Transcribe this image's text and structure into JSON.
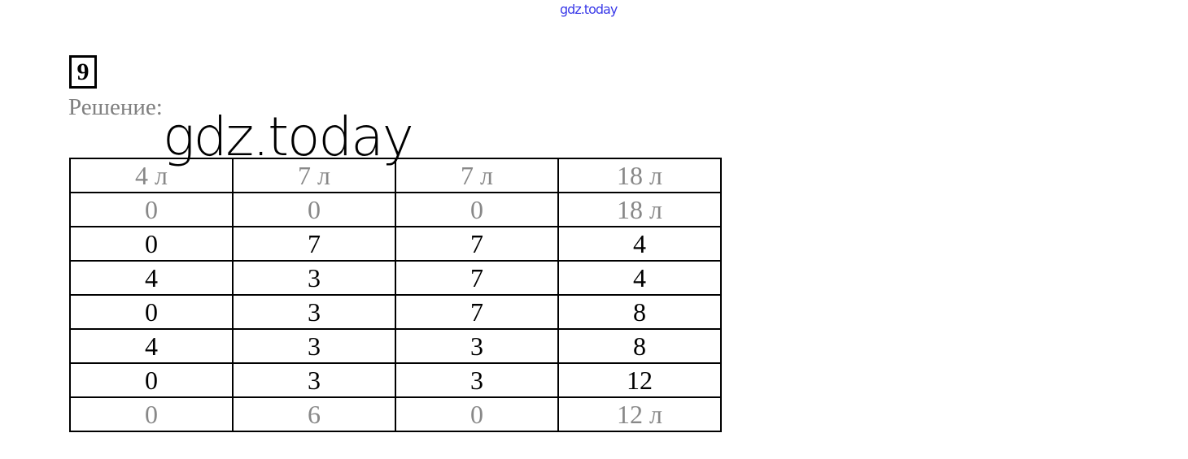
{
  "watermark_top": "gdz.today",
  "task_number": "9",
  "solution_label": "Решение:",
  "watermark_big": "gdz.today",
  "table": {
    "header": [
      "4 л",
      "7 л",
      "7 л",
      "18 л"
    ],
    "rows": [
      [
        "0",
        "0",
        "0",
        "18 л"
      ],
      [
        "0",
        "7",
        "7",
        "4"
      ],
      [
        "4",
        "3",
        "7",
        "4"
      ],
      [
        "0",
        "3",
        "7",
        "8"
      ],
      [
        "4",
        "3",
        "3",
        "8"
      ],
      [
        "0",
        "3",
        "3",
        "12"
      ],
      [
        "0",
        "6",
        "0",
        "12 л"
      ]
    ]
  }
}
